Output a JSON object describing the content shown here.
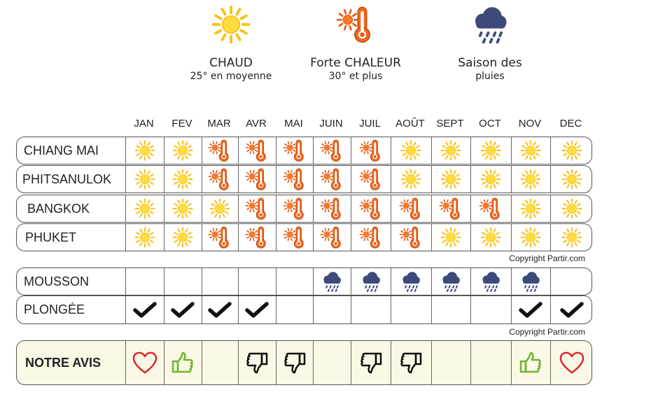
{
  "legend": [
    {
      "icon": "sun-icon",
      "title": "CHAUD",
      "subtitle": "25° en moyenne"
    },
    {
      "icon": "sun-thermometer-icon",
      "title": "Forte CHALEUR",
      "subtitle": "30° et plus"
    },
    {
      "icon": "rain-cloud-icon",
      "title": "Saison des",
      "subtitle": "pluies"
    }
  ],
  "chart_data": {
    "type": "table",
    "months": [
      "JAN",
      "FEV",
      "MAR",
      "AVR",
      "MAI",
      "JUIN",
      "JUIL",
      "AOÛT",
      "SEPT",
      "OCT",
      "NOV",
      "DEC"
    ],
    "weather": [
      {
        "city": "CHIANG MAI",
        "values": [
          "chaud",
          "chaud",
          "forte-chaleur",
          "forte-chaleur",
          "forte-chaleur",
          "forte-chaleur",
          "forte-chaleur",
          "chaud",
          "chaud",
          "chaud",
          "chaud",
          "chaud"
        ]
      },
      {
        "city": "PHITSANULOK",
        "values": [
          "chaud",
          "chaud",
          "forte-chaleur",
          "forte-chaleur",
          "forte-chaleur",
          "forte-chaleur",
          "forte-chaleur",
          "chaud",
          "chaud",
          "chaud",
          "chaud",
          "chaud"
        ]
      },
      {
        "city": "BANGKOK",
        "values": [
          "chaud",
          "chaud",
          "chaud",
          "forte-chaleur",
          "forte-chaleur",
          "forte-chaleur",
          "forte-chaleur",
          "forte-chaleur",
          "forte-chaleur",
          "forte-chaleur",
          "chaud",
          "chaud"
        ]
      },
      {
        "city": "PHUKET",
        "values": [
          "chaud",
          "chaud",
          "forte-chaleur",
          "forte-chaleur",
          "forte-chaleur",
          "forte-chaleur",
          "forte-chaleur",
          "forte-chaleur",
          "chaud",
          "chaud",
          "chaud",
          "chaud"
        ]
      }
    ],
    "copyright1": "Copyright Partir.com",
    "mousson": {
      "label": "MOUSSON",
      "values": [
        false,
        false,
        false,
        false,
        false,
        true,
        true,
        true,
        true,
        true,
        true,
        false
      ]
    },
    "plongee": {
      "label": "PLONGÉE",
      "values": [
        true,
        true,
        true,
        true,
        false,
        false,
        false,
        false,
        false,
        false,
        true,
        true
      ]
    },
    "copyright2": "Copyright Partir.com",
    "avis": {
      "label": "NOTRE AVIS",
      "values": [
        "heart",
        "thumbs-up",
        "",
        "thumbs-down",
        "thumbs-down",
        "",
        "thumbs-down",
        "thumbs-down",
        "",
        "",
        "thumbs-up",
        "heart"
      ]
    }
  }
}
